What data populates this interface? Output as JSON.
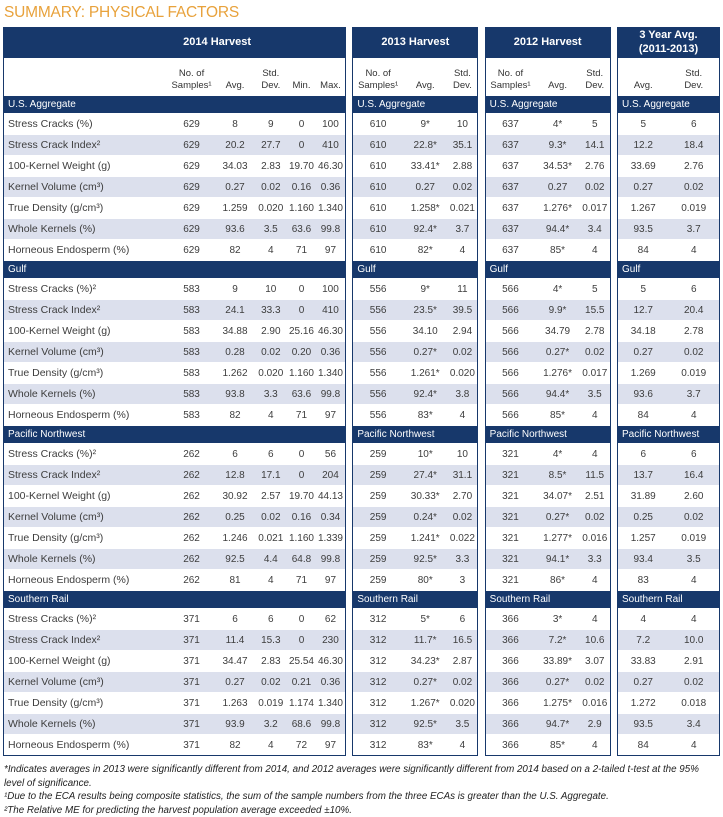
{
  "title": "SUMMARY: PHYSICAL FACTORS",
  "colors": {
    "navy": "#17386B",
    "row_stripe": "#DCE0ED",
    "title_orange": "#E8A23C",
    "body_text": "#3D3D3D",
    "header_text": "#FFFFFF"
  },
  "blocks": [
    {
      "id": "2014",
      "header": "2014 Harvest",
      "has_labels": true,
      "columns": [
        "No. of\nSamples¹",
        "Avg.",
        "Std.\nDev.",
        "Min.",
        "Max."
      ]
    },
    {
      "id": "2013",
      "header": "2013 Harvest",
      "has_labels": false,
      "columns": [
        "No. of\nSamples¹",
        "Avg.",
        "Std.\nDev."
      ]
    },
    {
      "id": "2012",
      "header": "2012 Harvest",
      "has_labels": false,
      "columns": [
        "No. of\nSamples¹",
        "Avg.",
        "Std.\nDev."
      ]
    },
    {
      "id": "3yr",
      "header": "3 Year Avg.\n(2011-2013)",
      "has_labels": false,
      "columns": [
        "Avg.",
        "Std.\nDev."
      ]
    }
  ],
  "sections": [
    {
      "name": "U.S. Aggregate",
      "rows": [
        {
          "label": "Stress Cracks (%)",
          "values": [
            [
              "629",
              "8",
              "9",
              "0",
              "100"
            ],
            [
              "610",
              "9*",
              "10"
            ],
            [
              "637",
              "4*",
              "5"
            ],
            [
              "5",
              "6"
            ]
          ]
        },
        {
          "label": "Stress Crack Index²",
          "values": [
            [
              "629",
              "20.2",
              "27.7",
              "0",
              "410"
            ],
            [
              "610",
              "22.8*",
              "35.1"
            ],
            [
              "637",
              "9.3*",
              "14.1"
            ],
            [
              "12.2",
              "18.4"
            ]
          ]
        },
        {
          "label": "100-Kernel Weight (g)",
          "values": [
            [
              "629",
              "34.03",
              "2.83",
              "19.70",
              "46.30"
            ],
            [
              "610",
              "33.41*",
              "2.88"
            ],
            [
              "637",
              "34.53*",
              "2.76"
            ],
            [
              "33.69",
              "2.76"
            ]
          ]
        },
        {
          "label": "Kernel Volume (cm³)",
          "values": [
            [
              "629",
              "0.27",
              "0.02",
              "0.16",
              "0.36"
            ],
            [
              "610",
              "0.27",
              "0.02"
            ],
            [
              "637",
              "0.27",
              "0.02"
            ],
            [
              "0.27",
              "0.02"
            ]
          ]
        },
        {
          "label": "True Density (g/cm³)",
          "values": [
            [
              "629",
              "1.259",
              "0.020",
              "1.160",
              "1.340"
            ],
            [
              "610",
              "1.258*",
              "0.021"
            ],
            [
              "637",
              "1.276*",
              "0.017"
            ],
            [
              "1.267",
              "0.019"
            ]
          ]
        },
        {
          "label": "Whole Kernels (%)",
          "values": [
            [
              "629",
              "93.6",
              "3.5",
              "63.6",
              "99.8"
            ],
            [
              "610",
              "92.4*",
              "3.7"
            ],
            [
              "637",
              "94.4*",
              "3.4"
            ],
            [
              "93.5",
              "3.7"
            ]
          ]
        },
        {
          "label": "Horneous Endosperm (%)",
          "values": [
            [
              "629",
              "82",
              "4",
              "71",
              "97"
            ],
            [
              "610",
              "82*",
              "4"
            ],
            [
              "637",
              "85*",
              "4"
            ],
            [
              "84",
              "4"
            ]
          ]
        }
      ]
    },
    {
      "name": "Gulf",
      "rows": [
        {
          "label": "Stress Cracks (%)²",
          "values": [
            [
              "583",
              "9",
              "10",
              "0",
              "100"
            ],
            [
              "556",
              "9*",
              "11"
            ],
            [
              "566",
              "4*",
              "5"
            ],
            [
              "5",
              "6"
            ]
          ]
        },
        {
          "label": "Stress Crack Index²",
          "values": [
            [
              "583",
              "24.1",
              "33.3",
              "0",
              "410"
            ],
            [
              "556",
              "23.5*",
              "39.5"
            ],
            [
              "566",
              "9.9*",
              "15.5"
            ],
            [
              "12.7",
              "20.4"
            ]
          ]
        },
        {
          "label": "100-Kernel Weight (g)",
          "values": [
            [
              "583",
              "34.88",
              "2.90",
              "25.16",
              "46.30"
            ],
            [
              "556",
              "34.10",
              "2.94"
            ],
            [
              "566",
              "34.79",
              "2.78"
            ],
            [
              "34.18",
              "2.78"
            ]
          ]
        },
        {
          "label": "Kernel Volume (cm³)",
          "values": [
            [
              "583",
              "0.28",
              "0.02",
              "0.20",
              "0.36"
            ],
            [
              "556",
              "0.27*",
              "0.02"
            ],
            [
              "566",
              "0.27*",
              "0.02"
            ],
            [
              "0.27",
              "0.02"
            ]
          ]
        },
        {
          "label": "True Density (g/cm³)",
          "values": [
            [
              "583",
              "1.262",
              "0.020",
              "1.160",
              "1.340"
            ],
            [
              "556",
              "1.261*",
              "0.020"
            ],
            [
              "566",
              "1.276*",
              "0.017"
            ],
            [
              "1.269",
              "0.019"
            ]
          ]
        },
        {
          "label": "Whole Kernels (%)",
          "values": [
            [
              "583",
              "93.8",
              "3.3",
              "63.6",
              "99.8"
            ],
            [
              "556",
              "92.4*",
              "3.8"
            ],
            [
              "566",
              "94.4*",
              "3.5"
            ],
            [
              "93.6",
              "3.7"
            ]
          ]
        },
        {
          "label": "Horneous Endosperm (%)",
          "values": [
            [
              "583",
              "82",
              "4",
              "71",
              "97"
            ],
            [
              "556",
              "83*",
              "4"
            ],
            [
              "566",
              "85*",
              "4"
            ],
            [
              "84",
              "4"
            ]
          ]
        }
      ]
    },
    {
      "name": "Pacific Northwest",
      "rows": [
        {
          "label": "Stress Cracks (%)²",
          "values": [
            [
              "262",
              "6",
              "6",
              "0",
              "56"
            ],
            [
              "259",
              "10*",
              "10"
            ],
            [
              "321",
              "4*",
              "4"
            ],
            [
              "6",
              "6"
            ]
          ]
        },
        {
          "label": "Stress Crack Index²",
          "values": [
            [
              "262",
              "12.8",
              "17.1",
              "0",
              "204"
            ],
            [
              "259",
              "27.4*",
              "31.1"
            ],
            [
              "321",
              "8.5*",
              "11.5"
            ],
            [
              "13.7",
              "16.4"
            ]
          ]
        },
        {
          "label": "100-Kernel Weight (g)",
          "values": [
            [
              "262",
              "30.92",
              "2.57",
              "19.70",
              "44.13"
            ],
            [
              "259",
              "30.33*",
              "2.70"
            ],
            [
              "321",
              "34.07*",
              "2.51"
            ],
            [
              "31.89",
              "2.60"
            ]
          ]
        },
        {
          "label": "Kernel Volume (cm³)",
          "values": [
            [
              "262",
              "0.25",
              "0.02",
              "0.16",
              "0.34"
            ],
            [
              "259",
              "0.24*",
              "0.02"
            ],
            [
              "321",
              "0.27*",
              "0.02"
            ],
            [
              "0.25",
              "0.02"
            ]
          ]
        },
        {
          "label": "True Density (g/cm³)",
          "values": [
            [
              "262",
              "1.246",
              "0.021",
              "1.160",
              "1.339"
            ],
            [
              "259",
              "1.241*",
              "0.022"
            ],
            [
              "321",
              "1.277*",
              "0.016"
            ],
            [
              "1.257",
              "0.019"
            ]
          ]
        },
        {
          "label": "Whole Kernels (%)",
          "values": [
            [
              "262",
              "92.5",
              "4.4",
              "64.8",
              "99.8"
            ],
            [
              "259",
              "92.5*",
              "3.3"
            ],
            [
              "321",
              "94.1*",
              "3.3"
            ],
            [
              "93.4",
              "3.5"
            ]
          ]
        },
        {
          "label": "Horneous Endosperm (%)",
          "values": [
            [
              "262",
              "81",
              "4",
              "71",
              "97"
            ],
            [
              "259",
              "80*",
              "3"
            ],
            [
              "321",
              "86*",
              "4"
            ],
            [
              "83",
              "4"
            ]
          ]
        }
      ]
    },
    {
      "name": "Southern Rail",
      "rows": [
        {
          "label": "Stress Cracks (%)²",
          "values": [
            [
              "371",
              "6",
              "6",
              "0",
              "62"
            ],
            [
              "312",
              "5*",
              "6"
            ],
            [
              "366",
              "3*",
              "4"
            ],
            [
              "4",
              "4"
            ]
          ]
        },
        {
          "label": "Stress Crack Index²",
          "values": [
            [
              "371",
              "11.4",
              "15.3",
              "0",
              "230"
            ],
            [
              "312",
              "11.7*",
              "16.5"
            ],
            [
              "366",
              "7.2*",
              "10.6"
            ],
            [
              "7.2",
              "10.0"
            ]
          ]
        },
        {
          "label": "100-Kernel Weight (g)",
          "values": [
            [
              "371",
              "34.47",
              "2.83",
              "25.54",
              "46.30"
            ],
            [
              "312",
              "34.23*",
              "2.87"
            ],
            [
              "366",
              "33.89*",
              "3.07"
            ],
            [
              "33.83",
              "2.91"
            ]
          ]
        },
        {
          "label": "Kernel Volume (cm³)",
          "values": [
            [
              "371",
              "0.27",
              "0.02",
              "0.21",
              "0.36"
            ],
            [
              "312",
              "0.27*",
              "0.02"
            ],
            [
              "366",
              "0.27*",
              "0.02"
            ],
            [
              "0.27",
              "0.02"
            ]
          ]
        },
        {
          "label": "True Density (g/cm³)",
          "values": [
            [
              "371",
              "1.263",
              "0.019",
              "1.174",
              "1.340"
            ],
            [
              "312",
              "1.267*",
              "0.020"
            ],
            [
              "366",
              "1.275*",
              "0.016"
            ],
            [
              "1.272",
              "0.018"
            ]
          ]
        },
        {
          "label": "Whole Kernels (%)",
          "values": [
            [
              "371",
              "93.9",
              "3.2",
              "68.6",
              "99.8"
            ],
            [
              "312",
              "92.5*",
              "3.5"
            ],
            [
              "366",
              "94.7*",
              "2.9"
            ],
            [
              "93.5",
              "3.4"
            ]
          ]
        },
        {
          "label": "Horneous Endosperm (%)",
          "values": [
            [
              "371",
              "82",
              "4",
              "72",
              "97"
            ],
            [
              "312",
              "83*",
              "4"
            ],
            [
              "366",
              "85*",
              "4"
            ],
            [
              "84",
              "4"
            ]
          ]
        }
      ]
    }
  ],
  "footnotes": [
    "*Indicates averages in 2013 were significantly different from 2014, and 2012 averages were significantly different from 2014 based on a 2-tailed t-test at the 95% level of significance.",
    "¹Due to the ECA results being composite statistics, the sum of the sample numbers from the three ECAs is greater than the U.S. Aggregate.",
    "²The Relative ME for predicting the harvest population average exceeded ±10%."
  ]
}
